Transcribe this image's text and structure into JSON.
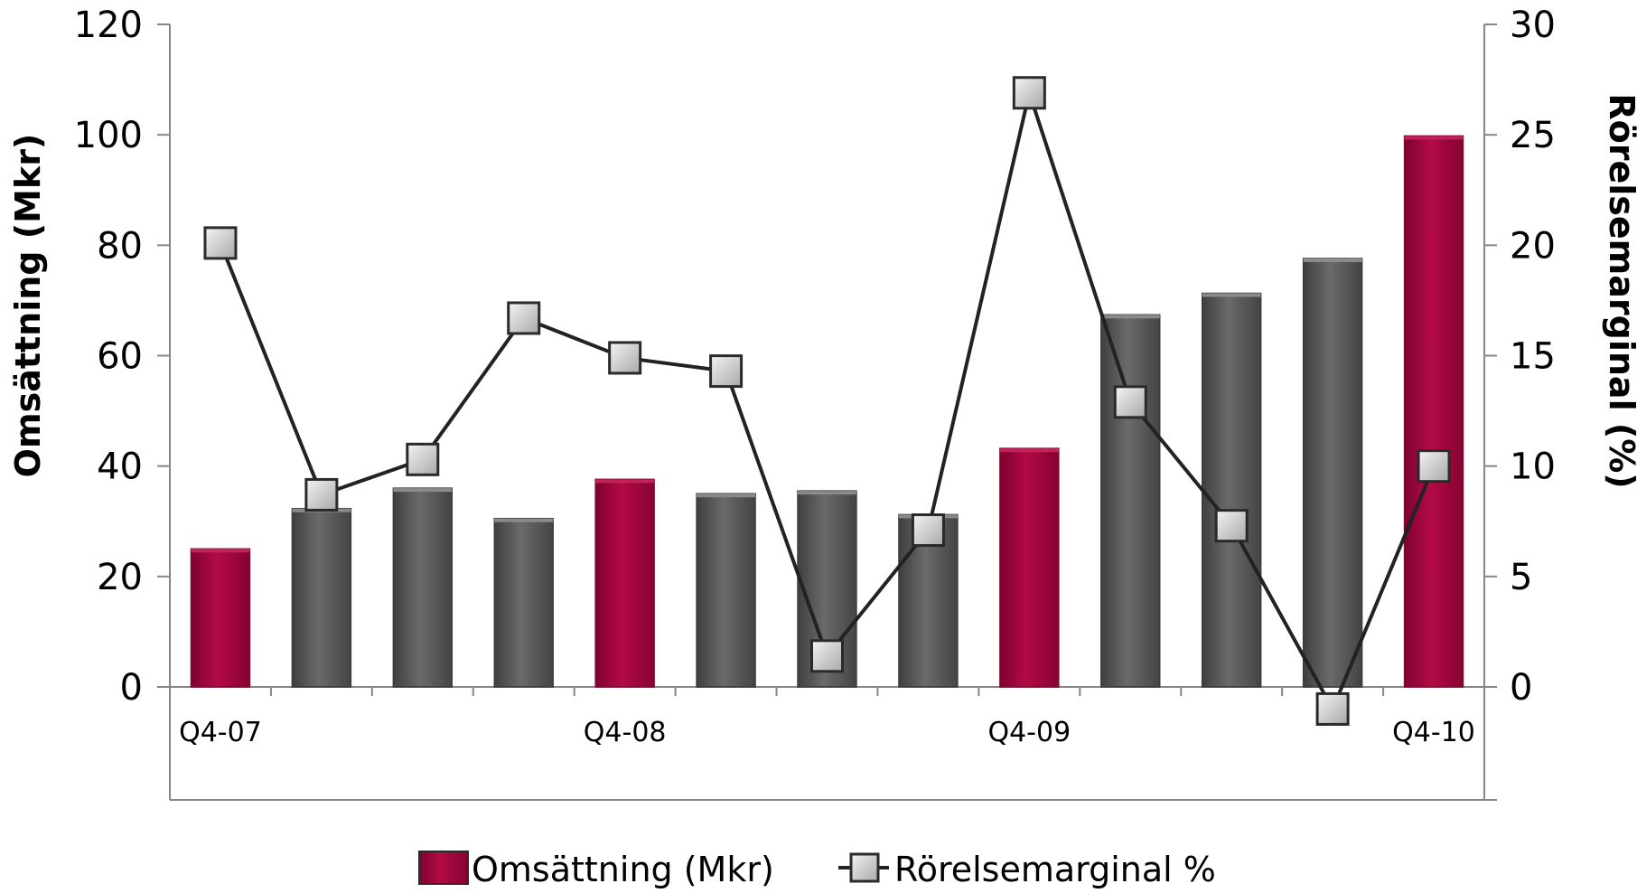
{
  "chart_data": {
    "type": "bar",
    "categories": [
      "Q4-07",
      "",
      "",
      "",
      "Q4-08",
      "",
      "",
      "",
      "Q4-09",
      "",
      "",
      "",
      "Q4-10"
    ],
    "series": [
      {
        "name": "Omsättning (Mkr)",
        "type": "bar",
        "axis": "left",
        "values": [
          25,
          32.3,
          36,
          30.5,
          37.6,
          35,
          35.5,
          31.2,
          43.2,
          67.4,
          71.3,
          77.6,
          99.8
        ],
        "highlight_indices": [
          0,
          4,
          8,
          12
        ]
      },
      {
        "name": "Rörelsemarginal %",
        "type": "line",
        "axis": "right",
        "values": [
          20.1,
          8.7,
          10.3,
          16.7,
          14.9,
          14.3,
          1.4,
          7.1,
          26.9,
          12.9,
          7.3,
          -1.0,
          10.0
        ]
      }
    ],
    "ylabel": "Omsättning (Mkr)",
    "ylabel_right": "Rörelsemarginal (%)",
    "ylim": [
      0,
      120
    ],
    "ylim_right": [
      0,
      30
    ],
    "yticks": [
      0,
      20,
      40,
      60,
      80,
      100,
      120
    ],
    "yticks_right": [
      0,
      5,
      10,
      15,
      20,
      25,
      30
    ],
    "legend_position": "bottom",
    "grid": false,
    "colors": {
      "bar_highlight": "#a0043a",
      "bar_default": "#5c5c5c",
      "line": "#222222",
      "marker_fill": "#d0d0d0"
    }
  }
}
